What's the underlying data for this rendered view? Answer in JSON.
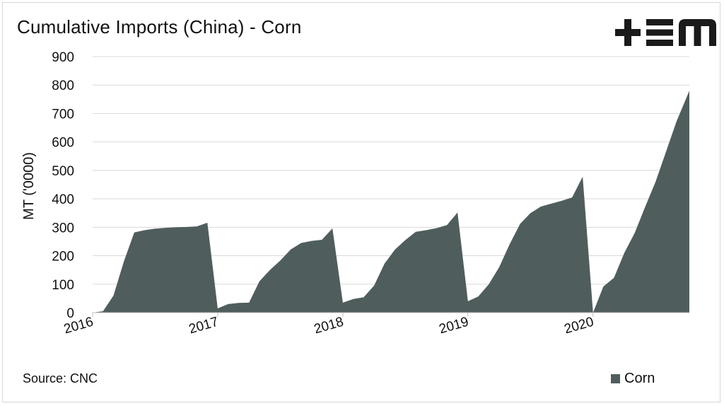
{
  "title": "Cumulative Imports (China) - Corn",
  "source": "Source: CNC",
  "colors": {
    "series": "#4f5e5d",
    "grid": "#d9d9d9",
    "axis": "#bfbfbf",
    "logo": "#1a1a1a"
  },
  "logo": {
    "text": "+EM",
    "icon": "tem-logo-icon"
  },
  "chart_data": {
    "type": "area",
    "title": "Cumulative Imports (China) - Corn",
    "xlabel": "",
    "ylabel": "MT ('0000)",
    "ylim": [
      0,
      900
    ],
    "yticks": [
      "0",
      "100",
      "200",
      "300",
      "400",
      "500",
      "600",
      "700",
      "800",
      "900"
    ],
    "xlim": [
      2016.0,
      2020.77
    ],
    "xticks": [
      {
        "value": 2016,
        "label": "2016"
      },
      {
        "value": 2017,
        "label": "2017"
      },
      {
        "value": 2018,
        "label": "2018"
      },
      {
        "value": 2019,
        "label": "2019"
      },
      {
        "value": 2020,
        "label": "2020"
      }
    ],
    "grid": "horizontal",
    "legend_position": "bottom-right",
    "series": [
      {
        "name": "Corn",
        "points": [
          [
            2016.0,
            0
          ],
          [
            2016.083,
            5
          ],
          [
            2016.167,
            60
          ],
          [
            2016.25,
            180
          ],
          [
            2016.333,
            282
          ],
          [
            2016.417,
            290
          ],
          [
            2016.5,
            295
          ],
          [
            2016.583,
            298
          ],
          [
            2016.667,
            300
          ],
          [
            2016.75,
            301
          ],
          [
            2016.833,
            303
          ],
          [
            2016.917,
            316
          ],
          [
            2017.0,
            15
          ],
          [
            2017.083,
            30
          ],
          [
            2017.167,
            34
          ],
          [
            2017.25,
            35
          ],
          [
            2017.333,
            110
          ],
          [
            2017.417,
            150
          ],
          [
            2017.5,
            183
          ],
          [
            2017.583,
            222
          ],
          [
            2017.667,
            245
          ],
          [
            2017.75,
            252
          ],
          [
            2017.833,
            256
          ],
          [
            2017.917,
            296
          ],
          [
            2018.0,
            35
          ],
          [
            2018.083,
            48
          ],
          [
            2018.167,
            54
          ],
          [
            2018.25,
            95
          ],
          [
            2018.333,
            172
          ],
          [
            2018.417,
            222
          ],
          [
            2018.5,
            255
          ],
          [
            2018.583,
            284
          ],
          [
            2018.667,
            290
          ],
          [
            2018.75,
            297
          ],
          [
            2018.833,
            308
          ],
          [
            2018.917,
            352
          ],
          [
            2019.0,
            40
          ],
          [
            2019.083,
            57
          ],
          [
            2019.167,
            100
          ],
          [
            2019.25,
            160
          ],
          [
            2019.333,
            240
          ],
          [
            2019.417,
            312
          ],
          [
            2019.5,
            350
          ],
          [
            2019.583,
            373
          ],
          [
            2019.667,
            383
          ],
          [
            2019.75,
            393
          ],
          [
            2019.833,
            405
          ],
          [
            2019.917,
            478
          ],
          [
            2020.0,
            0
          ],
          [
            2020.083,
            92
          ],
          [
            2020.167,
            122
          ],
          [
            2020.25,
            210
          ],
          [
            2020.333,
            280
          ],
          [
            2020.417,
            372
          ],
          [
            2020.5,
            460
          ],
          [
            2020.583,
            565
          ],
          [
            2020.667,
            672
          ],
          [
            2020.77,
            780
          ]
        ]
      }
    ]
  }
}
